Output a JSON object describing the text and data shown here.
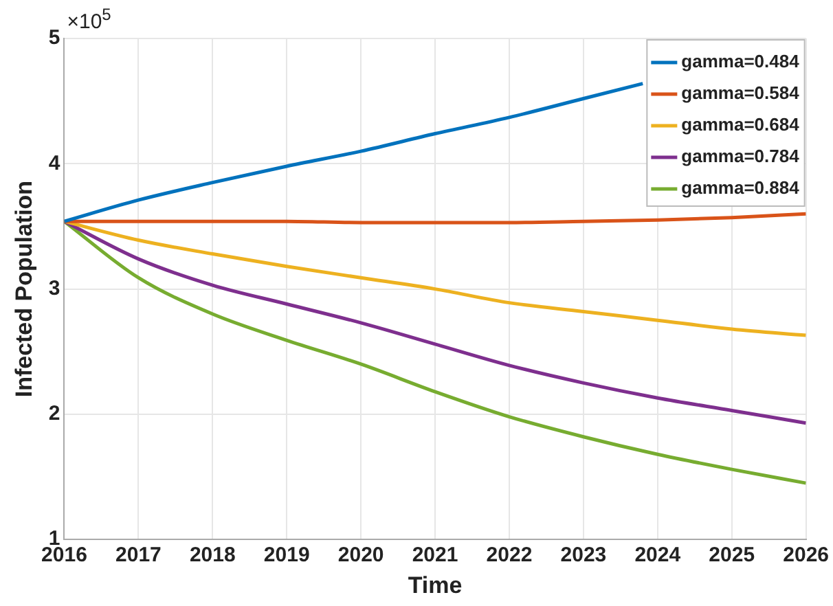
{
  "chart_data": {
    "type": "line",
    "xlabel": "Time",
    "ylabel": "Infected Population",
    "annotations": [
      "×10$^{5}$"
    ],
    "xlim": [
      2016,
      2026
    ],
    "xticks": [
      2016,
      2017,
      2018,
      2019,
      2020,
      2021,
      2022,
      2023,
      2024,
      2025,
      2026
    ],
    "ylim": [
      1,
      5
    ],
    "yticks": [
      1,
      2,
      3,
      4,
      5
    ],
    "grid": true,
    "legend": "top right",
    "marker": "none",
    "line_style": "solid",
    "series": [
      {
        "name": "gamma=0.484",
        "color": "#0072bd",
        "x": [
          2016,
          2017,
          2018,
          2019,
          2020,
          2021,
          2022,
          2023,
          2023.8
        ],
        "values": [
          3.54,
          3.71,
          3.85,
          3.98,
          4.1,
          4.24,
          4.37,
          4.52,
          4.64
        ]
      },
      {
        "name": "gamma=0.584",
        "color": "#d95319",
        "x": [
          2016,
          2017,
          2018,
          2019,
          2020,
          2021,
          2022,
          2023,
          2024,
          2025,
          2026
        ],
        "values": [
          3.54,
          3.54,
          3.54,
          3.54,
          3.53,
          3.53,
          3.53,
          3.54,
          3.55,
          3.57,
          3.6
        ]
      },
      {
        "name": "gamma=0.684",
        "color": "#edb120",
        "x": [
          2016,
          2017,
          2018,
          2019,
          2020,
          2021,
          2022,
          2023,
          2024,
          2025,
          2026
        ],
        "values": [
          3.54,
          3.39,
          3.28,
          3.18,
          3.09,
          3.0,
          2.89,
          2.82,
          2.75,
          2.68,
          2.63
        ]
      },
      {
        "name": "gamma=0.784",
        "color": "#7e2f8e",
        "x": [
          2016,
          2017,
          2018,
          2019,
          2020,
          2021,
          2022,
          2023,
          2024,
          2025,
          2026
        ],
        "values": [
          3.54,
          3.24,
          3.03,
          2.88,
          2.73,
          2.56,
          2.39,
          2.25,
          2.13,
          2.03,
          1.93
        ]
      },
      {
        "name": "gamma=0.884",
        "color": "#77ac30",
        "x": [
          2016,
          2017,
          2018,
          2019,
          2020,
          2021,
          2022,
          2023,
          2024,
          2025,
          2026
        ],
        "values": [
          3.54,
          3.09,
          2.8,
          2.59,
          2.4,
          2.18,
          1.98,
          1.82,
          1.68,
          1.56,
          1.45
        ]
      }
    ]
  }
}
